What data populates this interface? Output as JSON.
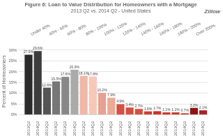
{
  "chart_data": {
    "type": "bar",
    "title": "Figure 6: Loan to Value Distribution for Homeowners with a Mortgage",
    "subtitle": "2013 Q2 vs. 2014 Q2 - United States",
    "annotations": [
      "Zillow"
    ],
    "categories": [
      "Under 40%",
      "40% - 60%",
      "60% - 80%",
      "80% - 100%",
      "100% - 120%",
      "120% - 140%",
      "140% - 160%",
      "160% - 180%",
      "180% - 200%",
      "Over 200%"
    ],
    "series": [
      {
        "name": "2013Q2",
        "colors": [
          "#2a2a2a",
          "#555555",
          "#888888",
          "#f0b8a8",
          "#e8a090",
          "#d45040",
          "#d45040",
          "#cc3322",
          "#cc3322",
          "#8b1515"
        ],
        "values": [
          27.9,
          12.6,
          17.6,
          18.1,
          10.2,
          4.9,
          2.7,
          1.7,
          1.1,
          3.2
        ],
        "value_labels": [
          "27.9%",
          "12.6%",
          "17.6%",
          "18.1%",
          "10.2%",
          "4.9%",
          "2.7%",
          "1.7%",
          "1.1%",
          "3.2%"
        ]
      },
      {
        "name": "2014Q2",
        "colors": [
          "#3d3d3d",
          "#777777",
          "#aaaaaa",
          "#f5c8b8",
          "#f0a898",
          "#d45040",
          "#cc4030",
          "#cc3322",
          "#cc3322",
          "#aa2222"
        ],
        "values": [
          29.6,
          15.5,
          20.9,
          17.8,
          7.9,
          3.4,
          1.6,
          1.1,
          0.7,
          2.1
        ],
        "value_labels": [
          "29.6%",
          "15.5%",
          "20.9%",
          "17.8%",
          "7.9%",
          "3.4%",
          "1.6%",
          "1.1%",
          "0.7%",
          "2.1%"
        ]
      }
    ],
    "ylabel": "Percent of Homeowners",
    "ylim": [
      0,
      31
    ],
    "yticks": [
      {
        "value": 0,
        "label": "0%"
      },
      {
        "value": 5,
        "label": "5%"
      },
      {
        "value": 10,
        "label": "10%"
      },
      {
        "value": 15,
        "label": "15%"
      },
      {
        "value": 20,
        "label": "20%"
      },
      {
        "value": 25,
        "label": "25%"
      },
      {
        "value": 30,
        "label": "30%"
      }
    ],
    "grid": true,
    "data_labels": true
  }
}
